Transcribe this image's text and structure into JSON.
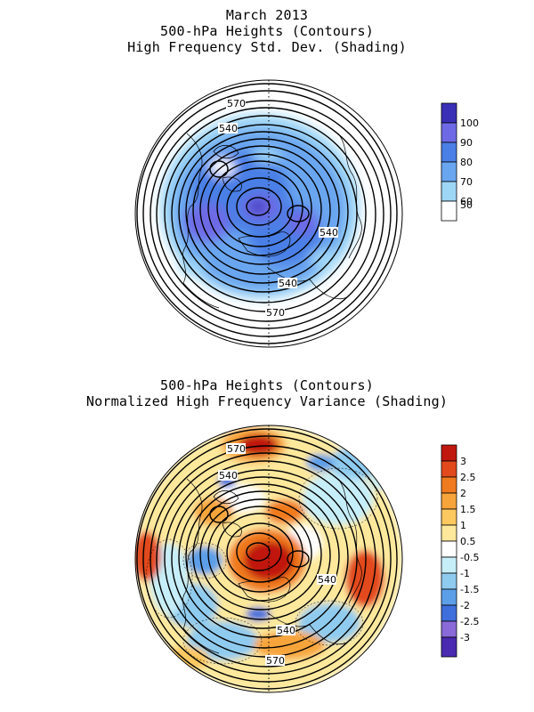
{
  "top": {
    "title_lines": [
      "March 2013",
      "500-hPa Heights (Contours)",
      "High Frequency Std. Dev. (Shading)"
    ],
    "contour_labels": [
      "570",
      "540",
      "540",
      "540",
      "570"
    ],
    "colorbar": {
      "labels": [
        "100",
        "90",
        "80",
        "70",
        "60",
        "50"
      ],
      "colors": [
        "#3a30b8",
        "#6e6ae6",
        "#4a7fe6",
        "#6aa6f0",
        "#9ed6f6",
        "#ffffff"
      ]
    }
  },
  "bottom": {
    "title_lines": [
      "500-hPa Heights (Contours)",
      "Normalized High Frequency Variance (Shading)"
    ],
    "contour_labels": [
      "570",
      "540",
      "540",
      "540",
      "570"
    ],
    "colorbar": {
      "labels": [
        "3",
        "2.5",
        "2",
        "1.5",
        "1",
        "0.5",
        "-0.5",
        "-1",
        "-1.5",
        "-2",
        "-2.5",
        "-3"
      ],
      "colors": [
        "#c0180e",
        "#e24a1e",
        "#f07a1e",
        "#f7a43a",
        "#fcc860",
        "#fde89c",
        "#ffffff",
        "#c6eef8",
        "#8fcbef",
        "#5c9fe8",
        "#3f6fdc",
        "#8a6ad8",
        "#4a2ab0"
      ]
    }
  },
  "colors": {
    "contour": "#000000",
    "coast": "#000000"
  }
}
